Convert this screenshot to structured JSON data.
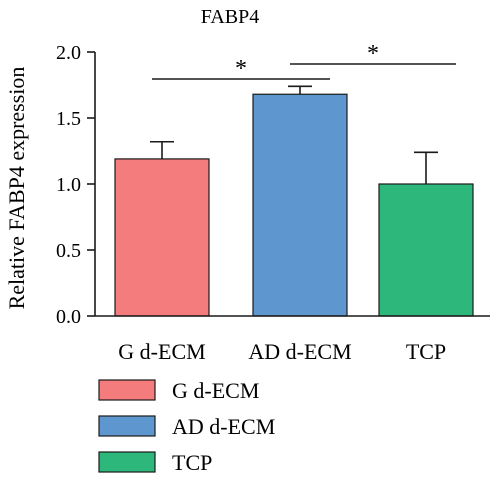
{
  "chart_data": {
    "type": "bar",
    "title": "FABP4",
    "xlabel": "",
    "ylabel": "Relative FABP4 expression",
    "categories": [
      "G d-ECM",
      "AD d-ECM",
      "TCP"
    ],
    "values": [
      1.19,
      1.68,
      1.0
    ],
    "errors": [
      0.13,
      0.06,
      0.24
    ],
    "colors": [
      "#F47C7C",
      "#5E97D0",
      "#2DB77B"
    ],
    "ylim": [
      0,
      2.0
    ],
    "yticks": [
      "0.0",
      "0.5",
      "1.0",
      "1.5",
      "2.0"
    ],
    "grid": false,
    "legend": {
      "placement": "bottom-left",
      "entries": [
        "G d-ECM",
        "AD d-ECM",
        "TCP"
      ]
    },
    "significance": [
      {
        "from": 0,
        "to": 1,
        "label": "*"
      },
      {
        "from": 1,
        "to": 2,
        "label": "*"
      }
    ]
  }
}
